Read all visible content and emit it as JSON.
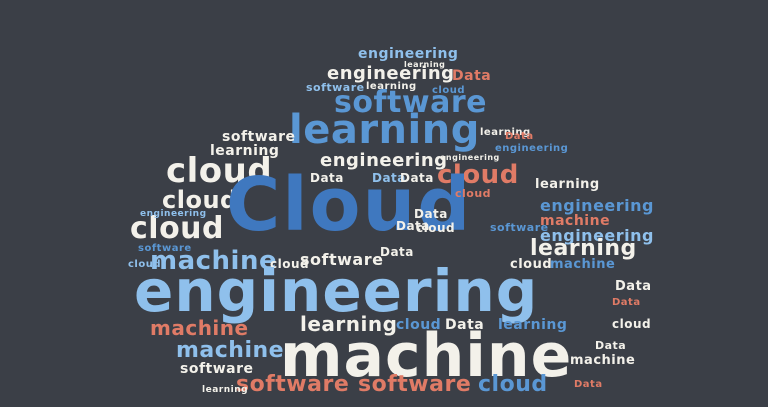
{
  "cloud": {
    "words": [
      {
        "text": "engineering",
        "color": "#8fc0ec"
      },
      {
        "text": "learning",
        "color": "#f3f1ea"
      },
      {
        "text": "engineering",
        "color": "#f3f1ea"
      },
      {
        "text": "Data",
        "color": "#e07b66"
      },
      {
        "text": "cloud",
        "color": "#5a97d4"
      },
      {
        "text": "learning",
        "color": "#f3f1ea"
      },
      {
        "text": "software",
        "color": "#8fc0ec"
      },
      {
        "text": "software",
        "color": "#5a97d4"
      },
      {
        "text": "learning",
        "color": "#5a97d4"
      },
      {
        "text": "cloud",
        "color": "#f3f1ea"
      },
      {
        "text": "cloud",
        "color": "#f3f1ea"
      },
      {
        "text": "cloud",
        "color": "#f3f1ea"
      },
      {
        "text": "cloud",
        "color": "#e07b66"
      },
      {
        "text": "Cloud",
        "color": "#3f78bf"
      },
      {
        "text": "engineering",
        "color": "#f3f1ea"
      },
      {
        "text": "learning",
        "color": "#f3f1ea"
      },
      {
        "text": "software",
        "color": "#f3f1ea"
      },
      {
        "text": "Data",
        "color": "#8fc0ec"
      },
      {
        "text": "Data",
        "color": "#f3f1ea"
      },
      {
        "text": "learning",
        "color": "#f3f1ea"
      },
      {
        "text": "engineering",
        "color": "#5a97d4"
      },
      {
        "text": "machine",
        "color": "#e07b66"
      },
      {
        "text": "learning",
        "color": "#f3f1ea"
      },
      {
        "text": "machine",
        "color": "#8fc0ec"
      },
      {
        "text": "software",
        "color": "#f3f1ea"
      },
      {
        "text": "engineering",
        "color": "#8fc0ec"
      },
      {
        "text": "machine",
        "color": "#e07b66"
      },
      {
        "text": "learning",
        "color": "#f3f1ea"
      },
      {
        "text": "machine",
        "color": "#8fc0ec"
      },
      {
        "text": "machine",
        "color": "#f3f1ea"
      },
      {
        "text": "software",
        "color": "#f3f1ea"
      },
      {
        "text": "software",
        "color": "#e07b66"
      },
      {
        "text": "software",
        "color": "#e07b66"
      },
      {
        "text": "cloud",
        "color": "#5a97d4"
      },
      {
        "text": "machine",
        "color": "#f3f1ea"
      },
      {
        "text": "Data",
        "color": "#e07b66"
      },
      {
        "text": "Data",
        "color": "#f3f1ea"
      },
      {
        "text": "Data",
        "color": "#f3f1ea"
      },
      {
        "text": "cloud",
        "color": "#f3f1ea"
      },
      {
        "text": "cloud",
        "color": "#f3f1ea"
      },
      {
        "text": "software",
        "color": "#5a97d4"
      },
      {
        "text": "learning",
        "color": "#5a97d4"
      },
      {
        "text": "cloud",
        "color": "#8fc0ec"
      },
      {
        "text": "Data",
        "color": "#f3f1ea"
      },
      {
        "text": "Data",
        "color": "#f3f1ea"
      },
      {
        "text": "engineering",
        "color": "#8fc0ec"
      },
      {
        "text": "Data",
        "color": "#e07b66"
      },
      {
        "text": "machine",
        "color": "#8fc0ec"
      },
      {
        "text": "engineering",
        "color": "#8fc0ec"
      },
      {
        "text": "Data",
        "color": "#f3f1ea"
      },
      {
        "text": "cloud",
        "color": "#f3f1ea"
      },
      {
        "text": "learning",
        "color": "#f3f1ea"
      },
      {
        "text": "software",
        "color": "#8fc0ec"
      },
      {
        "text": "cloud",
        "color": "#e07b66"
      },
      {
        "text": "Data",
        "color": "#f3f1ea"
      },
      {
        "text": "cloud",
        "color": "#f3f1ea"
      },
      {
        "text": "engineering",
        "color": "#8fc0ec"
      },
      {
        "text": "learning",
        "color": "#8fc0ec"
      },
      {
        "text": "cloud",
        "color": "#f3f1ea"
      },
      {
        "text": "software",
        "color": "#5a97d4"
      },
      {
        "text": "machine",
        "color": "#f3f1ea"
      },
      {
        "text": "cloud",
        "color": "#5a97d4"
      },
      {
        "text": "Data",
        "color": "#f3f1ea"
      },
      {
        "text": "Data",
        "color": "#e07b66"
      },
      {
        "text": "Data",
        "color": "#f3f1ea"
      },
      {
        "text": "cloud",
        "color": "#f3f1ea"
      },
      {
        "text": "learning",
        "color": "#f3f1ea"
      },
      {
        "text": "engineering",
        "color": "#5a97d4"
      },
      {
        "text": "cloud",
        "color": "#f3f1ea"
      },
      {
        "text": "Data",
        "color": "#e07b66"
      },
      {
        "text": "cloud",
        "color": "#5a97d4"
      },
      {
        "text": "software",
        "color": "#f3f1ea"
      },
      {
        "text": "machine",
        "color": "#e07b66"
      },
      {
        "text": "machine",
        "color": "#f3f1ea"
      },
      {
        "text": "cloud",
        "color": "#f3f1ea"
      },
      {
        "text": "learning",
        "color": "#f3f1ea"
      }
    ]
  }
}
